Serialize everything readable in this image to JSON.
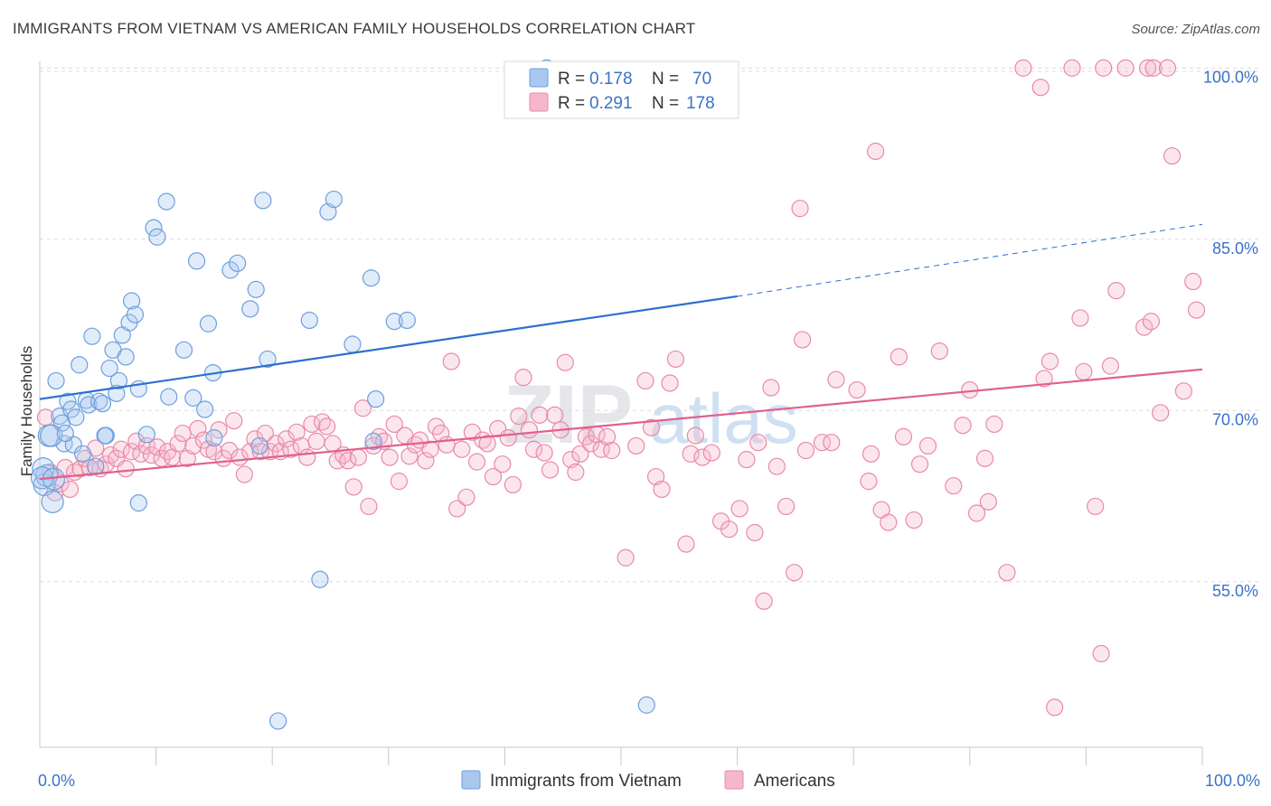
{
  "title": "IMMIGRANTS FROM VIETNAM VS AMERICAN FAMILY HOUSEHOLDS CORRELATION CHART",
  "source": "Source: ZipAtlas.com",
  "watermark": {
    "zip": "ZIP",
    "atlas": "atlas"
  },
  "colors": {
    "blue_fill": "#a8c8f0",
    "blue_stroke": "#6d9fdc",
    "blue_line": "#2b6fd0",
    "pink_fill": "#f5b8cb",
    "pink_stroke": "#e88aa8",
    "pink_line": "#e0608c",
    "tick_label": "#3a72c8",
    "grid": "#dcdcdc"
  },
  "legend": {
    "r_label": "R =",
    "n_label": "N =",
    "rows": [
      {
        "series": "blue",
        "r": "0.178",
        "n": "70"
      },
      {
        "series": "pink",
        "r": "0.291",
        "n": "178"
      }
    ]
  },
  "bottom_legend": [
    {
      "series": "blue",
      "label": "Immigrants from Vietnam"
    },
    {
      "series": "pink",
      "label": "Americans"
    }
  ],
  "chart_data": {
    "type": "scatter",
    "ylabel": "Family Households",
    "xlabel": "",
    "xlim": [
      0,
      100
    ],
    "ylim": [
      40.5,
      102
    ],
    "y_ticks": [
      55,
      70,
      85,
      100
    ],
    "y_tick_labels": [
      "55.0%",
      "70.0%",
      "85.0%",
      "100.0%"
    ],
    "x_tick_labels": [
      "0.0%",
      "100.0%"
    ],
    "x_minor_ticks": [
      10,
      20,
      30,
      40,
      50,
      60,
      70,
      80,
      90,
      100
    ],
    "series": [
      {
        "name": "Immigrants from Vietnam",
        "color": "blue",
        "R": 0.178,
        "N": 70,
        "trend": {
          "x0": 0,
          "y0": 71.0,
          "x1": 60,
          "y1": 80.0,
          "dashed_to_x": 100,
          "dashed_to_y": 86.3
        },
        "points": [
          [
            0.4,
            63.5
          ],
          [
            0.6,
            64.3
          ],
          [
            0.8,
            67.8
          ],
          [
            1.1,
            62.0
          ],
          [
            1.4,
            72.6
          ],
          [
            1.7,
            69.5
          ],
          [
            1.9,
            68.9
          ],
          [
            2.1,
            67.1
          ],
          [
            2.4,
            70.8
          ],
          [
            2.7,
            70.1
          ],
          [
            2.9,
            67.0
          ],
          [
            3.1,
            69.4
          ],
          [
            3.4,
            74.0
          ],
          [
            3.7,
            66.2
          ],
          [
            4.0,
            70.9
          ],
          [
            4.2,
            70.5
          ],
          [
            4.5,
            76.5
          ],
          [
            4.8,
            65.1
          ],
          [
            5.1,
            70.8
          ],
          [
            5.4,
            70.6
          ],
          [
            5.7,
            67.8
          ],
          [
            6.0,
            73.7
          ],
          [
            6.3,
            75.3
          ],
          [
            6.6,
            71.5
          ],
          [
            6.8,
            72.6
          ],
          [
            7.1,
            76.6
          ],
          [
            7.4,
            74.7
          ],
          [
            7.7,
            77.7
          ],
          [
            7.9,
            79.6
          ],
          [
            8.2,
            78.4
          ],
          [
            8.5,
            71.9
          ],
          [
            9.8,
            86.0
          ],
          [
            10.1,
            85.2
          ],
          [
            10.9,
            88.3
          ],
          [
            11.1,
            71.2
          ],
          [
            12.4,
            75.3
          ],
          [
            13.2,
            71.1
          ],
          [
            13.5,
            83.1
          ],
          [
            14.2,
            70.1
          ],
          [
            14.5,
            77.6
          ],
          [
            14.9,
            73.3
          ],
          [
            16.4,
            82.3
          ],
          [
            17.0,
            82.9
          ],
          [
            18.1,
            78.9
          ],
          [
            18.6,
            80.6
          ],
          [
            19.2,
            88.4
          ],
          [
            19.6,
            74.5
          ],
          [
            23.2,
            77.9
          ],
          [
            24.8,
            87.4
          ],
          [
            25.3,
            88.5
          ],
          [
            26.9,
            75.8
          ],
          [
            28.5,
            81.6
          ],
          [
            28.9,
            71.0
          ],
          [
            30.5,
            77.8
          ],
          [
            31.6,
            77.9
          ],
          [
            43.6,
            100.0
          ],
          [
            52.2,
            44.2
          ],
          [
            20.5,
            42.8
          ],
          [
            24.1,
            55.2
          ],
          [
            8.5,
            61.9
          ],
          [
            0.3,
            64.9
          ],
          [
            1.0,
            67.8
          ],
          [
            2.2,
            68.0
          ],
          [
            5.6,
            67.8
          ],
          [
            9.2,
            67.9
          ],
          [
            15.0,
            67.6
          ],
          [
            18.9,
            66.9
          ],
          [
            28.7,
            67.3
          ],
          [
            0.2,
            64.1
          ],
          [
            1.2,
            64.0
          ]
        ]
      },
      {
        "name": "Americans",
        "color": "pink",
        "R": 0.291,
        "N": 178,
        "trend": {
          "x0": 0,
          "y0": 64.0,
          "x1": 100,
          "y1": 73.6
        },
        "points": [
          [
            0.5,
            69.4
          ],
          [
            0.9,
            64.6
          ],
          [
            1.3,
            62.8
          ],
          [
            1.8,
            63.6
          ],
          [
            2.2,
            65.0
          ],
          [
            2.6,
            63.1
          ],
          [
            3.0,
            64.6
          ],
          [
            3.5,
            64.9
          ],
          [
            3.9,
            65.8
          ],
          [
            4.3,
            65.0
          ],
          [
            4.8,
            66.7
          ],
          [
            5.2,
            64.9
          ],
          [
            5.7,
            65.3
          ],
          [
            6.1,
            66.1
          ],
          [
            6.6,
            65.8
          ],
          [
            7.0,
            66.6
          ],
          [
            7.4,
            64.9
          ],
          [
            7.9,
            66.4
          ],
          [
            8.3,
            67.3
          ],
          [
            8.7,
            66.2
          ],
          [
            9.2,
            66.9
          ],
          [
            9.6,
            66.1
          ],
          [
            10.1,
            66.8
          ],
          [
            10.5,
            65.8
          ],
          [
            11.0,
            66.4
          ],
          [
            11.4,
            65.9
          ],
          [
            11.9,
            67.1
          ],
          [
            12.3,
            68.0
          ],
          [
            12.7,
            65.8
          ],
          [
            13.2,
            66.9
          ],
          [
            13.6,
            68.4
          ],
          [
            14.1,
            67.4
          ],
          [
            14.5,
            66.6
          ],
          [
            15.0,
            66.4
          ],
          [
            15.4,
            68.3
          ],
          [
            15.8,
            65.8
          ],
          [
            16.3,
            66.5
          ],
          [
            16.7,
            69.1
          ],
          [
            17.2,
            65.9
          ],
          [
            17.6,
            64.4
          ],
          [
            18.1,
            66.4
          ],
          [
            18.5,
            67.5
          ],
          [
            19.0,
            66.4
          ],
          [
            19.4,
            68.0
          ],
          [
            19.8,
            66.4
          ],
          [
            20.3,
            67.1
          ],
          [
            20.7,
            66.4
          ],
          [
            21.2,
            67.5
          ],
          [
            21.6,
            66.6
          ],
          [
            22.1,
            68.1
          ],
          [
            22.5,
            66.9
          ],
          [
            23.0,
            65.9
          ],
          [
            23.4,
            68.8
          ],
          [
            23.8,
            67.3
          ],
          [
            24.3,
            69.0
          ],
          [
            24.7,
            68.6
          ],
          [
            25.2,
            67.1
          ],
          [
            25.6,
            65.6
          ],
          [
            26.1,
            66.1
          ],
          [
            26.5,
            65.6
          ],
          [
            27.0,
            63.3
          ],
          [
            27.4,
            65.9
          ],
          [
            27.8,
            70.2
          ],
          [
            28.3,
            61.6
          ],
          [
            28.7,
            66.9
          ],
          [
            29.2,
            67.7
          ],
          [
            29.6,
            67.3
          ],
          [
            30.1,
            65.9
          ],
          [
            30.5,
            68.8
          ],
          [
            30.9,
            63.8
          ],
          [
            31.4,
            67.8
          ],
          [
            31.8,
            66.0
          ],
          [
            32.3,
            67.0
          ],
          [
            32.7,
            67.4
          ],
          [
            33.2,
            65.6
          ],
          [
            33.6,
            66.6
          ],
          [
            34.1,
            68.6
          ],
          [
            34.5,
            68.0
          ],
          [
            35.0,
            67.0
          ],
          [
            35.4,
            74.3
          ],
          [
            35.9,
            61.4
          ],
          [
            36.3,
            66.6
          ],
          [
            36.7,
            62.4
          ],
          [
            37.2,
            68.1
          ],
          [
            37.6,
            65.5
          ],
          [
            38.1,
            67.4
          ],
          [
            38.5,
            67.1
          ],
          [
            39.0,
            64.2
          ],
          [
            39.4,
            68.4
          ],
          [
            39.8,
            65.3
          ],
          [
            40.3,
            67.6
          ],
          [
            40.7,
            63.5
          ],
          [
            41.2,
            69.5
          ],
          [
            41.6,
            72.9
          ],
          [
            42.1,
            68.3
          ],
          [
            42.5,
            66.6
          ],
          [
            43.0,
            69.6
          ],
          [
            43.4,
            66.3
          ],
          [
            43.9,
            64.8
          ],
          [
            44.3,
            69.6
          ],
          [
            44.8,
            68.3
          ],
          [
            45.2,
            74.2
          ],
          [
            45.7,
            65.7
          ],
          [
            46.1,
            64.6
          ],
          [
            46.5,
            66.2
          ],
          [
            47.0,
            67.7
          ],
          [
            47.4,
            67.1
          ],
          [
            47.9,
            67.9
          ],
          [
            48.3,
            66.6
          ],
          [
            48.8,
            67.7
          ],
          [
            49.2,
            66.5
          ],
          [
            50.4,
            57.1
          ],
          [
            51.3,
            66.9
          ],
          [
            52.1,
            72.6
          ],
          [
            52.6,
            68.5
          ],
          [
            53.0,
            64.2
          ],
          [
            53.5,
            63.1
          ],
          [
            54.2,
            72.4
          ],
          [
            54.7,
            74.5
          ],
          [
            55.6,
            58.3
          ],
          [
            56.0,
            66.2
          ],
          [
            56.4,
            67.8
          ],
          [
            57.0,
            65.9
          ],
          [
            57.8,
            66.3
          ],
          [
            58.6,
            60.3
          ],
          [
            59.3,
            59.6
          ],
          [
            60.2,
            61.4
          ],
          [
            60.8,
            65.7
          ],
          [
            61.5,
            59.3
          ],
          [
            61.8,
            67.2
          ],
          [
            62.3,
            53.3
          ],
          [
            62.9,
            72.0
          ],
          [
            63.4,
            65.1
          ],
          [
            64.2,
            61.6
          ],
          [
            64.9,
            55.8
          ],
          [
            65.6,
            76.2
          ],
          [
            65.9,
            66.5
          ],
          [
            67.3,
            67.2
          ],
          [
            68.1,
            67.2
          ],
          [
            68.5,
            72.7
          ],
          [
            70.3,
            71.8
          ],
          [
            71.3,
            63.8
          ],
          [
            71.5,
            66.2
          ],
          [
            72.4,
            61.3
          ],
          [
            73.0,
            60.2
          ],
          [
            73.9,
            74.7
          ],
          [
            74.3,
            67.7
          ],
          [
            75.2,
            60.4
          ],
          [
            75.7,
            65.3
          ],
          [
            76.4,
            66.9
          ],
          [
            77.4,
            75.2
          ],
          [
            78.6,
            63.4
          ],
          [
            79.4,
            68.7
          ],
          [
            80.0,
            71.8
          ],
          [
            80.6,
            61.0
          ],
          [
            81.3,
            65.8
          ],
          [
            81.6,
            62.0
          ],
          [
            82.1,
            68.8
          ],
          [
            83.2,
            55.8
          ],
          [
            84.6,
            100.0
          ],
          [
            86.1,
            98.3
          ],
          [
            86.4,
            72.8
          ],
          [
            86.9,
            74.3
          ],
          [
            87.3,
            44.0
          ],
          [
            88.8,
            100.0
          ],
          [
            89.5,
            78.1
          ],
          [
            89.8,
            73.4
          ],
          [
            90.8,
            61.6
          ],
          [
            91.3,
            48.7
          ],
          [
            91.5,
            100.0
          ],
          [
            92.1,
            73.9
          ],
          [
            92.6,
            80.5
          ],
          [
            93.4,
            100.0
          ],
          [
            95.0,
            77.3
          ],
          [
            95.3,
            100.0
          ],
          [
            95.6,
            77.8
          ],
          [
            95.8,
            100.0
          ],
          [
            96.4,
            69.8
          ],
          [
            97.0,
            100.0
          ],
          [
            97.4,
            92.3
          ],
          [
            98.4,
            71.7
          ],
          [
            99.2,
            81.3
          ],
          [
            99.5,
            78.8
          ],
          [
            65.4,
            87.7
          ],
          [
            71.9,
            92.7
          ]
        ]
      }
    ]
  }
}
